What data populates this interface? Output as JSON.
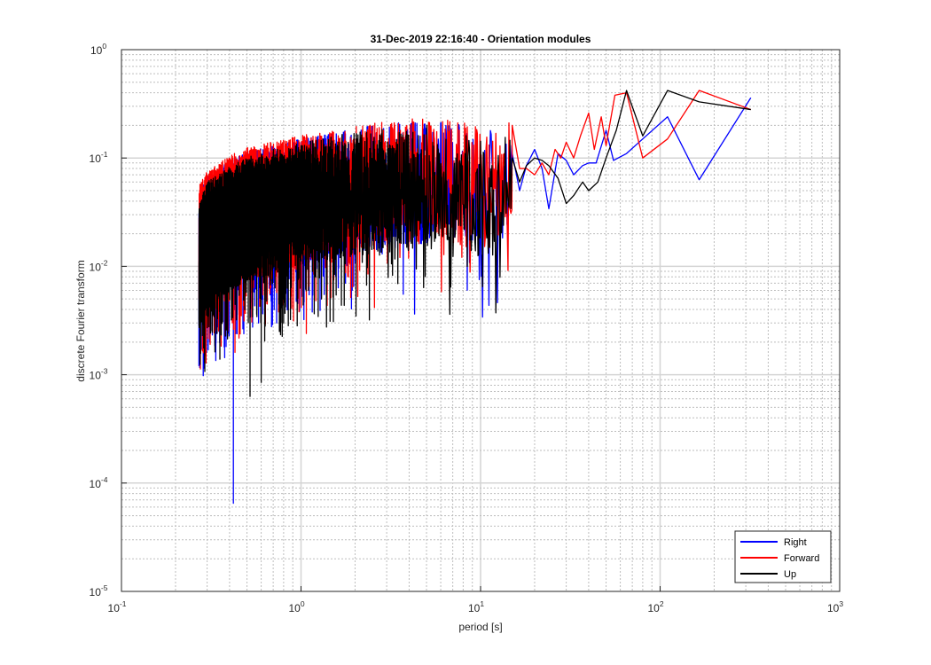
{
  "chart_data": {
    "type": "line",
    "title": "31-Dec-2019 22:16:40 - Orientation modules",
    "xlabel": "period [s]",
    "ylabel": "discrete Fourier transform",
    "xscale": "log",
    "yscale": "log",
    "xlim": [
      0.1,
      1000
    ],
    "ylim": [
      1e-05,
      1
    ],
    "grid": true,
    "minor_grid": true,
    "legend_position": "bottom-right",
    "x_ticks": [
      {
        "base": "10",
        "exp": "-1"
      },
      {
        "base": "10",
        "exp": "0"
      },
      {
        "base": "10",
        "exp": "1"
      },
      {
        "base": "10",
        "exp": "2"
      },
      {
        "base": "10",
        "exp": "3"
      }
    ],
    "y_ticks": [
      {
        "base": "10",
        "exp": "-5"
      },
      {
        "base": "10",
        "exp": "-4"
      },
      {
        "base": "10",
        "exp": "-3"
      },
      {
        "base": "10",
        "exp": "-2"
      },
      {
        "base": "10",
        "exp": "-1"
      },
      {
        "base": "10",
        "exp": "0"
      }
    ],
    "series": [
      {
        "name": "Right",
        "color": "#0000ff",
        "x_range": [
          0.27,
          320
        ],
        "anchors": [
          [
            0.27,
            0.012
          ],
          [
            0.3,
            0.018
          ],
          [
            0.4,
            0.025
          ],
          [
            0.5,
            0.03
          ],
          [
            0.7,
            0.035
          ],
          [
            1.0,
            0.04
          ],
          [
            1.5,
            0.045
          ],
          [
            2.0,
            0.05
          ],
          [
            3.0,
            0.055
          ],
          [
            5.0,
            0.06
          ],
          [
            8.0,
            0.055
          ],
          [
            10.2,
            0.045
          ],
          [
            15,
            0.06
          ]
        ],
        "dips": [
          [
            0.27,
            0.0012
          ],
          [
            0.31,
            0.002
          ],
          [
            0.35,
            0.0025
          ],
          [
            0.42,
            6.5e-05
          ],
          [
            0.48,
            0.005
          ],
          [
            0.58,
            0.003
          ],
          [
            10.2,
            0.0034
          ]
        ],
        "tail": [
          [
            15,
            0.11
          ],
          [
            16.5,
            0.05
          ],
          [
            18,
            0.085
          ],
          [
            20,
            0.12
          ],
          [
            22,
            0.08
          ],
          [
            24,
            0.034
          ],
          [
            27,
            0.11
          ],
          [
            30,
            0.095
          ],
          [
            33,
            0.07
          ],
          [
            37,
            0.085
          ],
          [
            40,
            0.09
          ],
          [
            44,
            0.09
          ],
          [
            50,
            0.18
          ],
          [
            55,
            0.095
          ],
          [
            65,
            0.11
          ],
          [
            80,
            0.15
          ],
          [
            110,
            0.24
          ],
          [
            165,
            0.063
          ],
          [
            320,
            0.36
          ]
        ]
      },
      {
        "name": "Forward",
        "color": "#ff0000",
        "x_range": [
          0.27,
          320
        ],
        "anchors": [
          [
            0.27,
            0.015
          ],
          [
            0.3,
            0.02
          ],
          [
            0.4,
            0.028
          ],
          [
            0.5,
            0.033
          ],
          [
            0.7,
            0.038
          ],
          [
            1.0,
            0.043
          ],
          [
            1.5,
            0.048
          ],
          [
            2.0,
            0.052
          ],
          [
            3.0,
            0.058
          ],
          [
            5.0,
            0.063
          ],
          [
            8.0,
            0.058
          ],
          [
            10.2,
            0.05
          ],
          [
            15,
            0.065
          ]
        ],
        "dips": [
          [
            0.29,
            0.003
          ],
          [
            0.36,
            0.0045
          ],
          [
            0.52,
            0.0075
          ],
          [
            0.75,
            0.0038
          ],
          [
            1.1,
            0.006
          ],
          [
            2.4,
            0.008
          ]
        ],
        "tail": [
          [
            15,
            0.2
          ],
          [
            16.5,
            0.08
          ],
          [
            18,
            0.08
          ],
          [
            20,
            0.07
          ],
          [
            22,
            0.09
          ],
          [
            24,
            0.07
          ],
          [
            26,
            0.12
          ],
          [
            28,
            0.1
          ],
          [
            30,
            0.14
          ],
          [
            33,
            0.1
          ],
          [
            36,
            0.16
          ],
          [
            40,
            0.26
          ],
          [
            43,
            0.12
          ],
          [
            47,
            0.24
          ],
          [
            50,
            0.13
          ],
          [
            56,
            0.38
          ],
          [
            65,
            0.4
          ],
          [
            80,
            0.1
          ],
          [
            110,
            0.15
          ],
          [
            165,
            0.42
          ],
          [
            320,
            0.28
          ]
        ]
      },
      {
        "name": "Up",
        "color": "#000000",
        "x_range": [
          0.27,
          320
        ],
        "anchors": [
          [
            0.27,
            0.01
          ],
          [
            0.3,
            0.016
          ],
          [
            0.4,
            0.022
          ],
          [
            0.5,
            0.027
          ],
          [
            0.7,
            0.032
          ],
          [
            1.0,
            0.037
          ],
          [
            1.5,
            0.042
          ],
          [
            2.0,
            0.047
          ],
          [
            3.0,
            0.05
          ],
          [
            5.0,
            0.055
          ],
          [
            8.0,
            0.05
          ],
          [
            10.2,
            0.04
          ],
          [
            15,
            0.055
          ]
        ],
        "dips": [
          [
            0.27,
            0.0032
          ],
          [
            0.33,
            0.004
          ],
          [
            0.41,
            0.0032
          ],
          [
            0.52,
            0.00063
          ],
          [
            0.6,
            0.00085
          ],
          [
            0.8,
            0.003
          ],
          [
            1.3,
            0.005
          ],
          [
            2.4,
            0.0032
          ],
          [
            10.2,
            0.0065
          ]
        ],
        "tail": [
          [
            15,
            0.1
          ],
          [
            16.5,
            0.06
          ],
          [
            18,
            0.085
          ],
          [
            20,
            0.1
          ],
          [
            22,
            0.095
          ],
          [
            24,
            0.085
          ],
          [
            27,
            0.065
          ],
          [
            30,
            0.038
          ],
          [
            33,
            0.045
          ],
          [
            37,
            0.06
          ],
          [
            40,
            0.05
          ],
          [
            45,
            0.06
          ],
          [
            50,
            0.1
          ],
          [
            57,
            0.18
          ],
          [
            65,
            0.42
          ],
          [
            80,
            0.16
          ],
          [
            110,
            0.42
          ],
          [
            165,
            0.33
          ],
          [
            320,
            0.28
          ]
        ]
      }
    ]
  }
}
